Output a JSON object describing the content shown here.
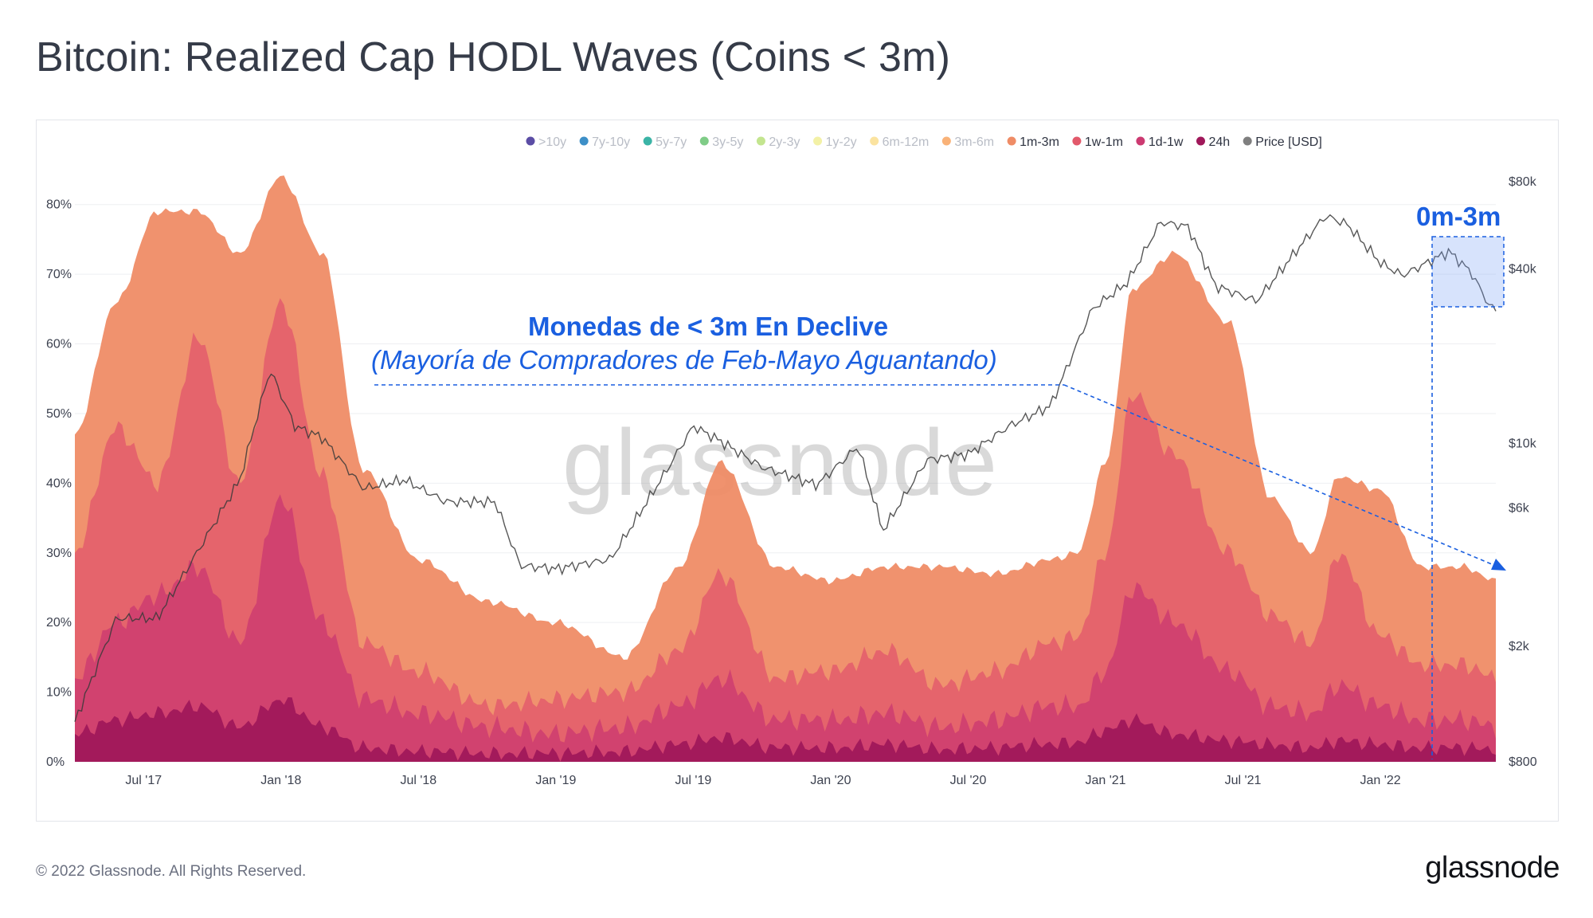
{
  "page": {
    "title": "Bitcoin: Realized Cap HODL Waves (Coins < 3m)",
    "copyright": "© 2022 Glassnode. All Rights Reserved.",
    "logo": "glassnode"
  },
  "chart_data": {
    "type": "area",
    "title": "Bitcoin: Realized Cap HODL Waves (Coins < 3m)",
    "watermark": "glassnode",
    "x_ticks": [
      "Jul '17",
      "Jan '18",
      "Jul '18",
      "Jan '19",
      "Jul '19",
      "Jan '20",
      "Jul '20",
      "Jan '21",
      "Jul '21",
      "Jan '22"
    ],
    "x_range": [
      2017.25,
      2022.42
    ],
    "y_left_ticks": [
      "0%",
      "10%",
      "20%",
      "30%",
      "40%",
      "50%",
      "60%",
      "70%",
      "80%"
    ],
    "y_left_range": [
      0,
      85
    ],
    "y_right_ticks": [
      "$800",
      "$2k",
      "$6k",
      "$10k",
      "$40k",
      "$80k"
    ],
    "y_right_range": [
      800,
      80000
    ],
    "y_right_scale": "log",
    "legend": [
      {
        "name": ">10y",
        "color": "#5b4da5",
        "active": false
      },
      {
        "name": "7y-10y",
        "color": "#3d8fc7",
        "active": false
      },
      {
        "name": "5y-7y",
        "color": "#3bb4a6",
        "active": false
      },
      {
        "name": "3y-5y",
        "color": "#7fcc87",
        "active": false
      },
      {
        "name": "2y-3y",
        "color": "#c3e58f",
        "active": false
      },
      {
        "name": "1y-2y",
        "color": "#f3f1a6",
        "active": false
      },
      {
        "name": "6m-12m",
        "color": "#fbe3a0",
        "active": false
      },
      {
        "name": "3m-6m",
        "color": "#f9b278",
        "active": false
      },
      {
        "name": "1m-3m",
        "color": "#ef8c66",
        "active": true
      },
      {
        "name": "1w-1m",
        "color": "#e2596b",
        "active": true
      },
      {
        "name": "1d-1w",
        "color": "#cc3a71",
        "active": true
      },
      {
        "name": "24h",
        "color": "#a0185a",
        "active": true
      },
      {
        "name": "Price [USD]",
        "color": "#7f7f7f",
        "active": true
      }
    ],
    "x": [
      2017.25,
      2017.4,
      2017.55,
      2017.7,
      2017.85,
      2018.0,
      2018.15,
      2018.3,
      2018.5,
      2018.75,
      2019.0,
      2019.25,
      2019.45,
      2019.6,
      2019.8,
      2020.0,
      2020.2,
      2020.4,
      2020.6,
      2020.8,
      2020.9,
      2021.0,
      2021.1,
      2021.25,
      2021.45,
      2021.6,
      2021.75,
      2021.85,
      2022.0,
      2022.15,
      2022.3,
      2022.42
    ],
    "series": [
      {
        "name": "1m-3m",
        "cumulative_percent": [
          47,
          66,
          79,
          79,
          73,
          84,
          73,
          42,
          29,
          23,
          20,
          15,
          28,
          43,
          28,
          26,
          28,
          28,
          27,
          29,
          30,
          43,
          68,
          73,
          63,
          38,
          30,
          41,
          39,
          28,
          28,
          26
        ]
      },
      {
        "name": "1w-1m",
        "cumulative_percent": [
          30,
          48,
          40,
          61,
          40,
          66,
          41,
          17,
          13,
          8,
          9,
          10,
          16,
          27,
          12,
          13,
          16,
          11,
          13,
          17,
          18,
          30,
          53,
          44,
          30,
          21,
          17,
          30,
          18,
          14,
          14,
          12
        ]
      },
      {
        "name": "1d-1w",
        "cumulative_percent": [
          12,
          20,
          24,
          28,
          17,
          38,
          20,
          9,
          7,
          5,
          4,
          5,
          8,
          12,
          6,
          6,
          7,
          5,
          6,
          8,
          8,
          13,
          25,
          20,
          13,
          8,
          7,
          11,
          8,
          6,
          6,
          5
        ]
      },
      {
        "name": "24h",
        "cumulative_percent": [
          4,
          6,
          7,
          8,
          5,
          9,
          5,
          2,
          1.5,
          1.2,
          1.2,
          1.5,
          2.5,
          3.5,
          2,
          2,
          2.5,
          1.8,
          2,
          2.6,
          2.8,
          4.5,
          6,
          4,
          3,
          2.5,
          2,
          3,
          2.5,
          2,
          2,
          1.8
        ]
      }
    ],
    "price_usd": [
      [
        2017.25,
        1100
      ],
      [
        2017.4,
        2500
      ],
      [
        2017.55,
        2500
      ],
      [
        2017.7,
        4300
      ],
      [
        2017.85,
        7500
      ],
      [
        2017.96,
        18000
      ],
      [
        2018.05,
        11500
      ],
      [
        2018.15,
        10500
      ],
      [
        2018.3,
        7000
      ],
      [
        2018.45,
        7500
      ],
      [
        2018.6,
        6300
      ],
      [
        2018.78,
        6300
      ],
      [
        2018.87,
        3800
      ],
      [
        2019.0,
        3700
      ],
      [
        2019.2,
        4000
      ],
      [
        2019.4,
        8000
      ],
      [
        2019.5,
        11500
      ],
      [
        2019.6,
        10200
      ],
      [
        2019.75,
        8300
      ],
      [
        2019.95,
        7200
      ],
      [
        2020.1,
        9800
      ],
      [
        2020.19,
        5000
      ],
      [
        2020.35,
        8800
      ],
      [
        2020.5,
        9200
      ],
      [
        2020.65,
        11500
      ],
      [
        2020.8,
        13500
      ],
      [
        2020.95,
        29000
      ],
      [
        2021.08,
        36000
      ],
      [
        2021.2,
        58000
      ],
      [
        2021.3,
        56000
      ],
      [
        2021.4,
        35000
      ],
      [
        2021.55,
        31000
      ],
      [
        2021.7,
        47000
      ],
      [
        2021.8,
        61000
      ],
      [
        2021.88,
        57000
      ],
      [
        2022.0,
        42000
      ],
      [
        2022.08,
        38000
      ],
      [
        2022.25,
        46000
      ],
      [
        2022.33,
        39000
      ],
      [
        2022.4,
        29500
      ],
      [
        2022.42,
        29000
      ]
    ],
    "annotations": [
      {
        "text": "Monedas de < 3m En Declive",
        "style": "bold"
      },
      {
        "text": "(Mayoría de Compradores de Feb-Mayo Aguantando)",
        "style": "italic"
      },
      {
        "text": "0m-3m",
        "style": "box-label"
      }
    ]
  }
}
